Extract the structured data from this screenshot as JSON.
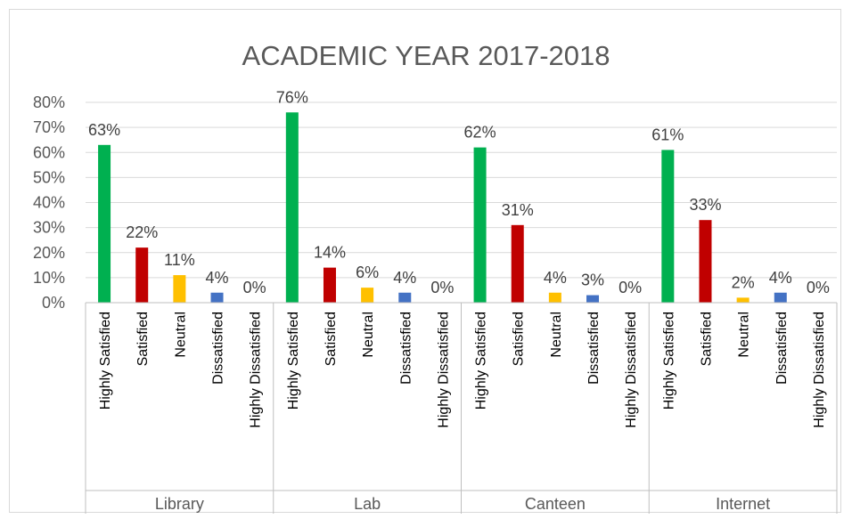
{
  "chart_data": {
    "type": "bar",
    "title": "ACADEMIC YEAR 2017-2018",
    "groups": [
      {
        "name": "Library",
        "categories": [
          "Highly Satisfied",
          "Satisfied",
          "Neutral",
          "Dissatisfied",
          "Highly Dissatisfied"
        ],
        "values": [
          63,
          22,
          11,
          4,
          0
        ],
        "labels": [
          "63%",
          "22%",
          "11%",
          "4%",
          "0%"
        ]
      },
      {
        "name": "Lab",
        "categories": [
          "Highly Satisfied",
          "Satisfied",
          "Neutral",
          "Dissatisfied",
          "Highly Dissatisfied"
        ],
        "values": [
          76,
          14,
          6,
          4,
          0
        ],
        "labels": [
          "76%",
          "14%",
          "6%",
          "4%",
          "0%"
        ]
      },
      {
        "name": "Canteen",
        "categories": [
          "Highly Satisfied",
          "Satisfied",
          "Neutral",
          "Dissatisfied",
          "Highly Dissatisfied"
        ],
        "values": [
          62,
          31,
          4,
          3,
          0
        ],
        "labels": [
          "62%",
          "31%",
          "4%",
          "3%",
          "0%"
        ]
      },
      {
        "name": "Internet",
        "categories": [
          "Highly Satisfied",
          "Satisfied",
          "Neutral",
          "Dissatisfied",
          "Highly Dissatisfied"
        ],
        "values": [
          61,
          33,
          2,
          4,
          0
        ],
        "labels": [
          "61%",
          "33%",
          "2%",
          "4%",
          "0%"
        ]
      }
    ],
    "y_ticks": [
      "0%",
      "10%",
      "20%",
      "30%",
      "40%",
      "50%",
      "60%",
      "70%",
      "80%"
    ],
    "ylim": [
      0,
      80
    ],
    "grid": true,
    "bar_colors": [
      "#00b050",
      "#c00000",
      "#ffc000",
      "#4472c4",
      "#4472c4"
    ]
  }
}
